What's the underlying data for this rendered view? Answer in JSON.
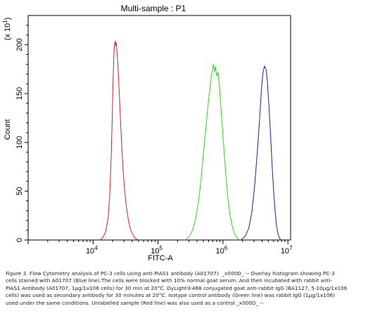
{
  "chart_data": {
    "type": "line",
    "title": "Multi-sample : P1",
    "xlabel": "FITC-A",
    "ylabel": "Count",
    "y_multiplier": "(x 10^1)",
    "y_multiplier_base": "(x 10",
    "y_multiplier_exp": "1",
    "y_multiplier_close": ")",
    "x_scale": "log",
    "xlim": [
      1000,
      11000000
    ],
    "ylim": [
      0,
      230
    ],
    "x_ticks": [
      {
        "value": 10000,
        "base": "10",
        "exp": "4"
      },
      {
        "value": 100000,
        "base": "10",
        "exp": "5"
      },
      {
        "value": 1000000,
        "base": "10",
        "exp": "6"
      },
      {
        "value": 10000000,
        "base": "10",
        "exp": "7"
      }
    ],
    "y_ticks": [
      {
        "value": 0,
        "label": "0"
      },
      {
        "value": 50,
        "label": "50"
      },
      {
        "value": 100,
        "label": "100"
      },
      {
        "value": 150,
        "label": "150"
      },
      {
        "value": 200,
        "label": "200"
      }
    ],
    "grid": false,
    "legend": "none",
    "series": [
      {
        "color": "#c8262c",
        "points": [
          [
            12600,
            0
          ],
          [
            14000,
            2
          ],
          [
            15500,
            8
          ],
          [
            17000,
            22
          ],
          [
            18000,
            45
          ],
          [
            19000,
            85
          ],
          [
            19800,
            130
          ],
          [
            20400,
            168
          ],
          [
            20900,
            190
          ],
          [
            21400,
            200
          ],
          [
            21900,
            204
          ],
          [
            22300,
            199
          ],
          [
            22800,
            202
          ],
          [
            23300,
            193
          ],
          [
            24000,
            182
          ],
          [
            25000,
            158
          ],
          [
            26500,
            120
          ],
          [
            28000,
            88
          ],
          [
            30000,
            58
          ],
          [
            32000,
            38
          ],
          [
            35000,
            20
          ],
          [
            38000,
            10
          ],
          [
            42000,
            4
          ],
          [
            46000,
            1
          ],
          [
            50000,
            0
          ]
        ]
      },
      {
        "color": "#2bd71f",
        "points": [
          [
            260000,
            0
          ],
          [
            300000,
            3
          ],
          [
            340000,
            10
          ],
          [
            380000,
            22
          ],
          [
            420000,
            40
          ],
          [
            460000,
            62
          ],
          [
            500000,
            88
          ],
          [
            540000,
            112
          ],
          [
            580000,
            134
          ],
          [
            620000,
            152
          ],
          [
            660000,
            168
          ],
          [
            690000,
            174
          ],
          [
            710000,
            180
          ],
          [
            740000,
            172
          ],
          [
            770000,
            178
          ],
          [
            800000,
            168
          ],
          [
            840000,
            172
          ],
          [
            880000,
            158
          ],
          [
            930000,
            135
          ],
          [
            980000,
            115
          ],
          [
            1040000,
            90
          ],
          [
            1100000,
            70
          ],
          [
            1180000,
            45
          ],
          [
            1270000,
            28
          ],
          [
            1380000,
            15
          ],
          [
            1500000,
            7
          ],
          [
            1650000,
            2
          ],
          [
            1800000,
            0
          ]
        ]
      },
      {
        "color": "#1f1f9c",
        "points": [
          [
            1900000,
            0
          ],
          [
            2200000,
            4
          ],
          [
            2500000,
            12
          ],
          [
            2800000,
            30
          ],
          [
            3100000,
            58
          ],
          [
            3400000,
            92
          ],
          [
            3700000,
            128
          ],
          [
            3950000,
            158
          ],
          [
            4150000,
            172
          ],
          [
            4350000,
            178
          ],
          [
            4500000,
            176
          ],
          [
            4650000,
            174
          ],
          [
            4850000,
            160
          ],
          [
            5100000,
            138
          ],
          [
            5400000,
            108
          ],
          [
            5700000,
            78
          ],
          [
            6000000,
            52
          ],
          [
            6300000,
            32
          ],
          [
            6600000,
            17
          ],
          [
            7000000,
            7
          ],
          [
            7400000,
            2
          ],
          [
            7800000,
            0
          ]
        ]
      }
    ]
  },
  "caption": {
    "lines": [
      "Figure 3. Flow Cytometry analysis of PC-3 cells using anti-PIAS1 antibody (A01707). _x000D_ -- Overlay histogram showing PC-3",
      "cells stained with A01707 (Blue line).The cells were blocked with 10% normal goat serum. And then incubated with rabbit anti-",
      "PIAS1 Antibody (A01707, 1µg/1x106 cells) for 30 min at 20°C. DyLight®488 conjugated goat anti-rabbit IgG (BA1127, 5-10µg/1x106",
      "cells) was used as secondary antibody for 30 minutes at 20°C. Isotype control antibody (Green line) was rabbit IgG (1µg/1x106)",
      "used under the same conditions. Unlabelled sample (Red line) was also used as a control._x000D_ --"
    ]
  }
}
